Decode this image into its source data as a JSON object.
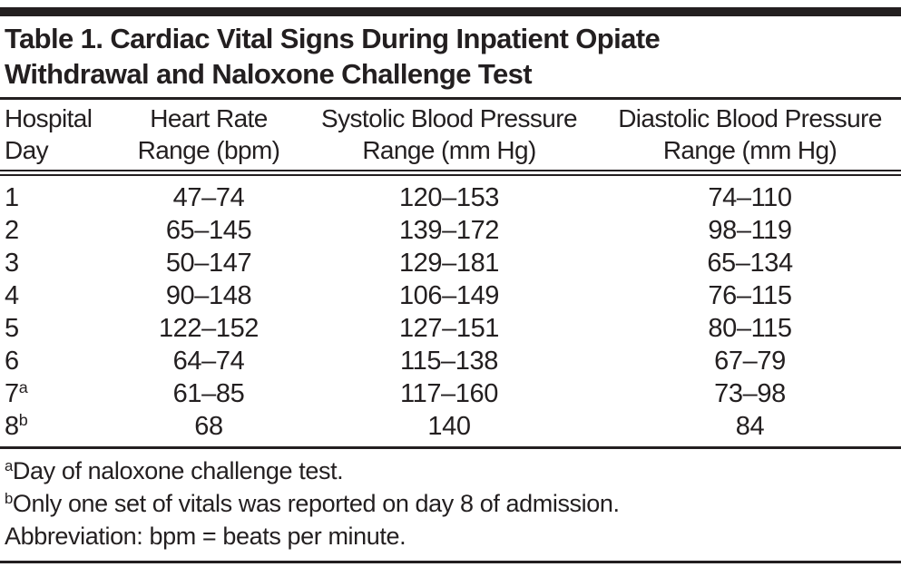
{
  "table": {
    "title_line1": "Table 1. Cardiac Vital Signs During Inpatient Opiate",
    "title_line2": "Withdrawal and Naloxone Challenge Test",
    "columns": [
      {
        "line1": "Hospital",
        "line2": "Day"
      },
      {
        "line1": "Heart Rate",
        "line2": "Range (bpm)"
      },
      {
        "line1": "Systolic Blood Pressure",
        "line2": "Range (mm Hg)"
      },
      {
        "line1": "Diastolic Blood Pressure",
        "line2": "Range (mm Hg)"
      }
    ],
    "rows": [
      {
        "day": "1",
        "day_sup": "",
        "heart_rate": "47–74",
        "systolic": "120–153",
        "diastolic": "74–110"
      },
      {
        "day": "2",
        "day_sup": "",
        "heart_rate": "65–145",
        "systolic": "139–172",
        "diastolic": "98–119"
      },
      {
        "day": "3",
        "day_sup": "",
        "heart_rate": "50–147",
        "systolic": "129–181",
        "diastolic": "65–134"
      },
      {
        "day": "4",
        "day_sup": "",
        "heart_rate": "90–148",
        "systolic": "106–149",
        "diastolic": "76–115"
      },
      {
        "day": "5",
        "day_sup": "",
        "heart_rate": "122–152",
        "systolic": "127–151",
        "diastolic": "80–115"
      },
      {
        "day": "6",
        "day_sup": "",
        "heart_rate": "64–74",
        "systolic": "115–138",
        "diastolic": "67–79"
      },
      {
        "day": "7",
        "day_sup": "a",
        "heart_rate": "61–85",
        "systolic": "117–160",
        "diastolic": "73–98"
      },
      {
        "day": "8",
        "day_sup": "b",
        "heart_rate": "68",
        "systolic": "140",
        "diastolic": "84"
      }
    ],
    "footnotes": [
      {
        "sup": "a",
        "text": "Day of naloxone challenge test."
      },
      {
        "sup": "b",
        "text": "Only one set of vitals was reported on day 8 of admission."
      },
      {
        "sup": "",
        "text": "Abbreviation: bpm = beats per minute."
      }
    ],
    "colors": {
      "text": "#231f20",
      "rule": "#231f20",
      "background": "#ffffff"
    }
  },
  "chart_data": {
    "type": "table",
    "title": "Table 1. Cardiac Vital Signs During Inpatient Opiate Withdrawal and Naloxone Challenge Test",
    "columns": [
      "Hospital Day",
      "Heart Rate Range (bpm)",
      "Systolic Blood Pressure Range (mm Hg)",
      "Diastolic Blood Pressure Range (mm Hg)"
    ],
    "rows": [
      [
        "1",
        "47–74",
        "120–153",
        "74–110"
      ],
      [
        "2",
        "65–145",
        "139–172",
        "98–119"
      ],
      [
        "3",
        "50–147",
        "129–181",
        "65–134"
      ],
      [
        "4",
        "90–148",
        "106–149",
        "76–115"
      ],
      [
        "5",
        "122–152",
        "127–151",
        "80–115"
      ],
      [
        "6",
        "64–74",
        "115–138",
        "67–79"
      ],
      [
        "7a",
        "61–85",
        "117–160",
        "73–98"
      ],
      [
        "8b",
        "68",
        "140",
        "84"
      ]
    ],
    "footnotes": [
      "a Day of naloxone challenge test.",
      "b Only one set of vitals was reported on day 8 of admission.",
      "Abbreviation: bpm = beats per minute."
    ]
  }
}
